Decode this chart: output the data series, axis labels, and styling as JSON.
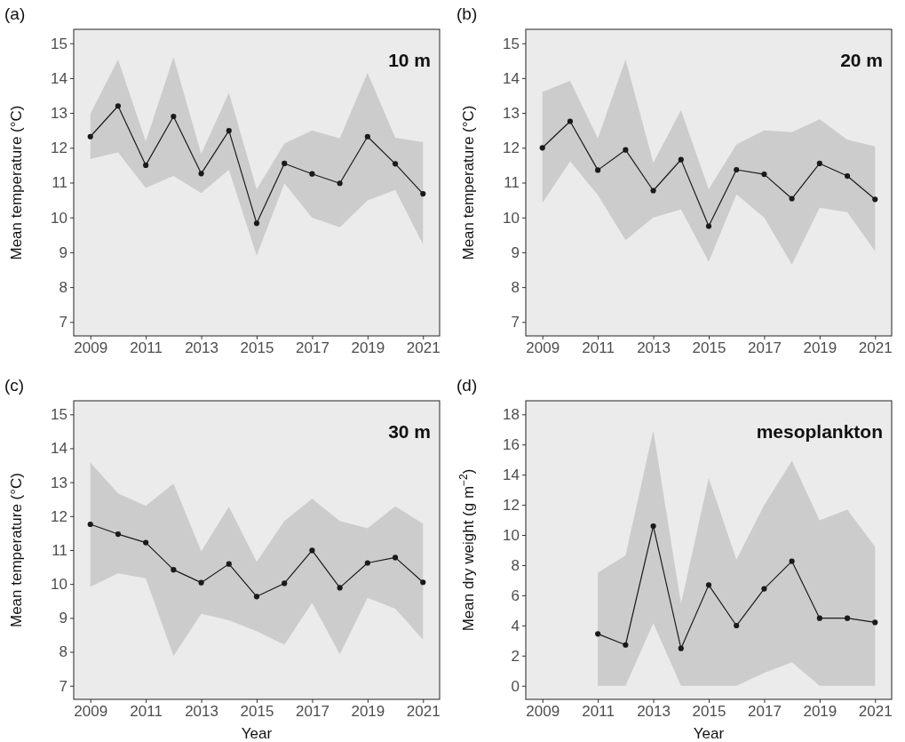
{
  "chart_data": [
    {
      "type": "line",
      "title": "(a)",
      "annotations": [
        "10 m"
      ],
      "ylabel": "Mean temperature (°C)",
      "x": [
        2009,
        2010,
        2011,
        2012,
        2013,
        2014,
        2015,
        2016,
        2017,
        2018,
        2019,
        2020,
        2021
      ],
      "xlim": [
        2008.4,
        2021.6
      ],
      "xticks": [
        2009,
        2011,
        2013,
        2015,
        2017,
        2019,
        2021
      ],
      "ylim": [
        6.6,
        15.4
      ],
      "yticks": [
        7,
        8,
        9,
        10,
        11,
        12,
        13,
        14,
        15
      ],
      "marker": "circle",
      "series": [
        {
          "color": "#1a1a1a",
          "values": [
            12.32,
            13.2,
            11.5,
            12.9,
            11.26,
            12.49,
            9.83,
            11.55,
            11.25,
            10.98,
            12.32,
            11.54,
            10.68
          ],
          "lower": [
            11.68,
            11.87,
            10.85,
            11.19,
            10.7,
            11.37,
            8.9,
            10.98,
            9.99,
            9.72,
            10.49,
            10.79,
            9.23
          ],
          "upper": [
            12.98,
            14.53,
            12.18,
            14.6,
            11.82,
            13.58,
            10.81,
            12.12,
            12.5,
            12.27,
            14.15,
            12.29,
            12.16
          ]
        }
      ]
    },
    {
      "type": "line",
      "title": "(b)",
      "annotations": [
        "20 m"
      ],
      "ylabel": "Mean temperature (°C)",
      "x": [
        2009,
        2010,
        2011,
        2012,
        2013,
        2014,
        2015,
        2016,
        2017,
        2018,
        2019,
        2020,
        2021
      ],
      "xlim": [
        2008.4,
        2021.6
      ],
      "xticks": [
        2009,
        2011,
        2013,
        2015,
        2017,
        2019,
        2021
      ],
      "ylim": [
        6.6,
        15.4
      ],
      "yticks": [
        7,
        8,
        9,
        10,
        11,
        12,
        13,
        14,
        15
      ],
      "marker": "circle",
      "series": [
        {
          "color": "#1a1a1a",
          "values": [
            12.0,
            12.76,
            11.36,
            11.94,
            10.77,
            11.66,
            9.75,
            11.37,
            11.24,
            10.54,
            11.55,
            11.19,
            10.52
          ],
          "lower": [
            10.42,
            11.61,
            10.64,
            9.35,
            10.0,
            10.23,
            8.73,
            10.66,
            10.0,
            8.65,
            10.28,
            10.15,
            9.03
          ],
          "upper": [
            13.6,
            13.92,
            12.27,
            14.53,
            11.57,
            13.08,
            10.81,
            12.1,
            12.5,
            12.45,
            12.82,
            12.23,
            12.04
          ]
        }
      ]
    },
    {
      "type": "line",
      "title": "(c)",
      "annotations": [
        "30 m"
      ],
      "xlabel": "Year",
      "ylabel": "Mean temperature (°C)",
      "x": [
        2009,
        2010,
        2011,
        2012,
        2013,
        2014,
        2015,
        2016,
        2017,
        2018,
        2019,
        2020,
        2021
      ],
      "xlim": [
        2008.4,
        2021.6
      ],
      "xticks": [
        2009,
        2011,
        2013,
        2015,
        2017,
        2019,
        2021
      ],
      "ylim": [
        6.6,
        15.4
      ],
      "yticks": [
        7,
        8,
        9,
        10,
        11,
        12,
        13,
        14,
        15
      ],
      "marker": "circle",
      "series": [
        {
          "color": "#1a1a1a",
          "values": [
            11.76,
            11.47,
            11.22,
            10.42,
            10.04,
            10.59,
            9.63,
            10.02,
            10.99,
            9.89,
            10.62,
            10.78,
            10.05
          ],
          "lower": [
            9.92,
            10.31,
            10.17,
            7.88,
            9.12,
            8.93,
            8.61,
            8.21,
            9.44,
            7.93,
            9.59,
            9.27,
            8.36
          ],
          "upper": [
            13.58,
            12.67,
            12.3,
            12.96,
            10.96,
            12.28,
            10.65,
            11.86,
            12.51,
            11.86,
            11.64,
            12.29,
            11.78
          ]
        }
      ]
    },
    {
      "type": "line",
      "title": "(d)",
      "annotations": [
        "mesoplankton"
      ],
      "xlabel": "Year",
      "ylabel": "Mean dry weight (g m$^{−2}$)",
      "x": [
        2011,
        2012,
        2013,
        2014,
        2015,
        2016,
        2017,
        2018,
        2019,
        2020,
        2021
      ],
      "xlim": [
        2008.4,
        2021.6
      ],
      "xticks": [
        2009,
        2011,
        2013,
        2015,
        2017,
        2019,
        2021
      ],
      "ylim": [
        -0.9,
        18.9
      ],
      "yticks": [
        0,
        2,
        4,
        6,
        8,
        10,
        12,
        14,
        16,
        18
      ],
      "marker": "circle",
      "series": [
        {
          "color": "#1a1a1a",
          "values": [
            3.44,
            2.71,
            10.59,
            2.48,
            6.68,
            3.99,
            6.43,
            8.26,
            4.48,
            4.48,
            4.2
          ],
          "lower": [
            0,
            0,
            4.16,
            0,
            0,
            0,
            0.86,
            1.56,
            0,
            0,
            0
          ],
          "upper": [
            7.5,
            8.64,
            16.93,
            5.44,
            13.78,
            8.36,
            11.98,
            14.92,
            10.97,
            11.68,
            9.22
          ]
        }
      ]
    }
  ]
}
